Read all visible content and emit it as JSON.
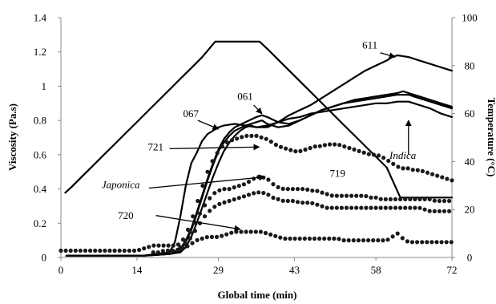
{
  "chart_data": {
    "type": "line",
    "xlabel": "Global time (min)",
    "ylabel": "Viscosity  (Pa.s)",
    "y2label": "Temperature (°C)",
    "xlim": [
      0,
      72
    ],
    "ylim": [
      0,
      1.4
    ],
    "y2lim": [
      0,
      100
    ],
    "xticks": [
      "0",
      "14",
      "29",
      "43",
      "58",
      "72"
    ],
    "xtick_values": [
      0,
      14,
      29,
      43,
      58,
      72
    ],
    "yticks": [
      "0",
      "0.2",
      "0.4",
      "0.6",
      "0.8",
      "1",
      "1.2",
      "1.4"
    ],
    "ytick_values": [
      0,
      0.2,
      0.4,
      0.6,
      0.8,
      1,
      1.2,
      1.4
    ],
    "y2ticks": [
      "0",
      "20",
      "40",
      "60",
      "80",
      "100"
    ],
    "y2tick_values": [
      0,
      20,
      40,
      60,
      80,
      100
    ],
    "grid": false,
    "series": [
      {
        "name": "Temperature",
        "axis": "right",
        "style": "line",
        "lineWidth": 2.2,
        "x": [
          0.8,
          2,
          4,
          6,
          8,
          10,
          12,
          14,
          16,
          18,
          20,
          22,
          24,
          26,
          28.4,
          31,
          34,
          36.6,
          38,
          40,
          42,
          44,
          46,
          48,
          50,
          52,
          54,
          56,
          58,
          60,
          62.5,
          65,
          68,
          72
        ],
        "y": [
          27,
          29.5,
          34,
          38.5,
          43,
          47.5,
          52,
          56.5,
          61,
          65.5,
          70,
          74.5,
          79,
          83.5,
          90,
          90,
          90,
          90,
          87,
          82.5,
          78,
          73.5,
          69,
          64.5,
          60,
          55.5,
          51,
          46.5,
          42,
          37.5,
          25,
          25,
          25,
          25
        ]
      },
      {
        "name": "611",
        "axis": "left",
        "style": "line",
        "lineWidth": 2.2,
        "x": [
          1,
          5,
          10,
          15,
          20,
          22,
          23,
          24,
          25,
          26,
          27,
          28,
          29,
          30,
          31,
          32,
          33,
          34,
          35,
          36,
          37,
          38,
          40,
          42,
          44,
          46,
          48,
          50,
          52,
          54,
          56,
          58,
          60,
          61,
          62,
          63,
          64,
          66,
          68,
          70,
          72
        ],
        "y": [
          0.01,
          0.01,
          0.01,
          0.01,
          0.02,
          0.03,
          0.06,
          0.12,
          0.2,
          0.29,
          0.38,
          0.47,
          0.55,
          0.62,
          0.67,
          0.71,
          0.74,
          0.76,
          0.77,
          0.76,
          0.76,
          0.76,
          0.79,
          0.83,
          0.86,
          0.89,
          0.93,
          0.97,
          1.01,
          1.05,
          1.09,
          1.12,
          1.15,
          1.17,
          1.18,
          1.175,
          1.17,
          1.15,
          1.13,
          1.11,
          1.09
        ]
      },
      {
        "name": "Indica",
        "axis": "left",
        "style": "line",
        "lineWidth": 2.2,
        "x": [
          1,
          5,
          10,
          15,
          20,
          21,
          22,
          23,
          24,
          25,
          26,
          27,
          28,
          29,
          30,
          32,
          34,
          36,
          38,
          40,
          42,
          44,
          46,
          48,
          50,
          52,
          54,
          56,
          58,
          60,
          62,
          64,
          66,
          68,
          70,
          72
        ],
        "y": [
          0.01,
          0.01,
          0.01,
          0.01,
          0.03,
          0.09,
          0.24,
          0.42,
          0.55,
          0.61,
          0.68,
          0.72,
          0.74,
          0.76,
          0.77,
          0.78,
          0.77,
          0.76,
          0.77,
          0.79,
          0.81,
          0.82,
          0.84,
          0.85,
          0.86,
          0.87,
          0.88,
          0.89,
          0.9,
          0.9,
          0.91,
          0.91,
          0.89,
          0.87,
          0.84,
          0.82
        ]
      },
      {
        "name": "061",
        "axis": "left",
        "style": "line",
        "lineWidth": 2.2,
        "x": [
          1,
          5,
          10,
          15,
          20,
          22,
          23,
          24,
          25,
          26,
          27,
          28,
          29,
          30,
          31,
          32,
          34,
          36,
          37,
          38,
          40,
          42,
          44,
          46,
          48,
          50,
          52,
          54,
          56,
          58,
          60,
          62,
          63,
          64,
          66,
          68,
          70,
          72
        ],
        "y": [
          0.01,
          0.01,
          0.01,
          0.01,
          0.02,
          0.05,
          0.1,
          0.17,
          0.26,
          0.36,
          0.46,
          0.55,
          0.63,
          0.69,
          0.73,
          0.76,
          0.79,
          0.82,
          0.83,
          0.82,
          0.79,
          0.78,
          0.8,
          0.83,
          0.86,
          0.88,
          0.9,
          0.92,
          0.93,
          0.94,
          0.95,
          0.96,
          0.97,
          0.96,
          0.94,
          0.92,
          0.9,
          0.88
        ]
      },
      {
        "name": "067",
        "axis": "left",
        "style": "line",
        "lineWidth": 2.2,
        "x": [
          1,
          5,
          10,
          15,
          20,
          22,
          23,
          24,
          25,
          26,
          27,
          28,
          29,
          30,
          31,
          32,
          34,
          36,
          37,
          38,
          40,
          42,
          44,
          46,
          48,
          50,
          52,
          54,
          56,
          58,
          60,
          62,
          64,
          66,
          68,
          70,
          72
        ],
        "y": [
          0.01,
          0.01,
          0.01,
          0.01,
          0.02,
          0.04,
          0.09,
          0.16,
          0.25,
          0.35,
          0.45,
          0.54,
          0.62,
          0.67,
          0.71,
          0.74,
          0.77,
          0.79,
          0.8,
          0.78,
          0.76,
          0.77,
          0.8,
          0.83,
          0.86,
          0.88,
          0.9,
          0.91,
          0.92,
          0.93,
          0.94,
          0.95,
          0.95,
          0.93,
          0.91,
          0.89,
          0.87
        ]
      },
      {
        "name": "721",
        "axis": "left",
        "style": "dots",
        "dotRadius": 2.6,
        "step": 0.9,
        "x": [
          0,
          2,
          4,
          6,
          8,
          10,
          12,
          14,
          15,
          16,
          17,
          18,
          19,
          20,
          21,
          22,
          23,
          24,
          25,
          26,
          27,
          28,
          29,
          30,
          31,
          32,
          33,
          34,
          35,
          36,
          37,
          38,
          39,
          40,
          41,
          42,
          43,
          44,
          45,
          46,
          47,
          48,
          49,
          50,
          51,
          52,
          53,
          54,
          55,
          56,
          57,
          58,
          59,
          60,
          61,
          62,
          63,
          64,
          65,
          66,
          67,
          68,
          69,
          70,
          71,
          72
        ],
        "y": [
          0.04,
          0.04,
          0.04,
          0.04,
          0.04,
          0.04,
          0.04,
          0.04,
          0.05,
          0.06,
          0.07,
          0.07,
          0.07,
          0.07,
          0.07,
          0.08,
          0.13,
          0.21,
          0.31,
          0.41,
          0.5,
          0.57,
          0.62,
          0.66,
          0.68,
          0.69,
          0.7,
          0.71,
          0.71,
          0.71,
          0.7,
          0.69,
          0.67,
          0.65,
          0.64,
          0.63,
          0.62,
          0.62,
          0.63,
          0.64,
          0.65,
          0.65,
          0.66,
          0.66,
          0.66,
          0.65,
          0.64,
          0.63,
          0.62,
          0.61,
          0.6,
          0.6,
          0.59,
          0.57,
          0.55,
          0.53,
          0.52,
          0.52,
          0.51,
          0.51,
          0.5,
          0.49,
          0.48,
          0.47,
          0.46,
          0.45
        ]
      },
      {
        "name": "Japonica",
        "axis": "left",
        "style": "dots",
        "dotRadius": 2.6,
        "step": 0.9,
        "x": [
          22,
          23,
          24,
          25,
          26,
          27,
          28,
          29,
          30,
          31,
          32,
          33,
          34,
          35,
          36,
          37,
          38,
          39,
          40,
          41,
          42,
          43,
          44,
          45,
          46,
          47,
          48,
          49,
          50,
          51,
          52,
          53,
          54,
          55,
          56,
          57,
          58,
          59,
          60,
          61,
          62,
          63,
          64,
          65,
          66,
          67,
          68,
          69,
          70,
          71,
          72
        ],
        "y": [
          0.06,
          0.1,
          0.16,
          0.22,
          0.28,
          0.33,
          0.37,
          0.39,
          0.4,
          0.4,
          0.41,
          0.42,
          0.43,
          0.45,
          0.47,
          0.47,
          0.46,
          0.43,
          0.41,
          0.4,
          0.4,
          0.4,
          0.4,
          0.4,
          0.39,
          0.39,
          0.38,
          0.37,
          0.36,
          0.36,
          0.36,
          0.36,
          0.36,
          0.36,
          0.36,
          0.35,
          0.35,
          0.34,
          0.34,
          0.34,
          0.34,
          0.34,
          0.34,
          0.34,
          0.34,
          0.34,
          0.34,
          0.33,
          0.33,
          0.33,
          0.33
        ]
      },
      {
        "name": "719",
        "axis": "left",
        "style": "dots",
        "dotRadius": 2.6,
        "step": 0.9,
        "x": [
          22,
          23,
          24,
          25,
          26,
          27,
          28,
          29,
          30,
          31,
          32,
          33,
          34,
          35,
          36,
          37,
          38,
          39,
          40,
          41,
          42,
          43,
          44,
          45,
          46,
          47,
          48,
          49,
          50,
          51,
          52,
          53,
          54,
          55,
          56,
          57,
          58,
          59,
          60,
          61,
          62,
          63,
          64,
          65,
          66,
          67,
          68,
          69,
          70,
          71,
          72
        ],
        "y": [
          0.05,
          0.08,
          0.12,
          0.17,
          0.22,
          0.26,
          0.29,
          0.31,
          0.32,
          0.33,
          0.34,
          0.35,
          0.36,
          0.37,
          0.38,
          0.38,
          0.37,
          0.35,
          0.34,
          0.33,
          0.33,
          0.33,
          0.32,
          0.32,
          0.32,
          0.31,
          0.3,
          0.29,
          0.29,
          0.29,
          0.29,
          0.29,
          0.29,
          0.29,
          0.29,
          0.29,
          0.29,
          0.29,
          0.29,
          0.29,
          0.29,
          0.29,
          0.29,
          0.29,
          0.29,
          0.28,
          0.27,
          0.27,
          0.27,
          0.27,
          0.27
        ]
      },
      {
        "name": "720",
        "axis": "left",
        "style": "dots",
        "dotRadius": 2.6,
        "step": 0.9,
        "x": [
          17,
          18,
          19,
          20,
          21,
          22,
          23,
          24,
          25,
          26,
          27,
          28,
          29,
          30,
          31,
          32,
          33,
          34,
          35,
          36,
          37,
          38,
          39,
          40,
          41,
          42,
          43,
          44,
          45,
          46,
          47,
          48,
          49,
          50,
          51,
          52,
          53,
          54,
          55,
          56,
          57,
          58,
          59,
          60,
          61,
          62,
          63,
          64,
          65,
          66,
          67,
          68,
          69,
          70,
          71,
          72
        ],
        "y": [
          0.03,
          0.03,
          0.04,
          0.04,
          0.04,
          0.05,
          0.06,
          0.08,
          0.1,
          0.11,
          0.12,
          0.12,
          0.12,
          0.13,
          0.14,
          0.15,
          0.15,
          0.15,
          0.15,
          0.15,
          0.15,
          0.14,
          0.13,
          0.12,
          0.11,
          0.11,
          0.11,
          0.11,
          0.11,
          0.11,
          0.11,
          0.11,
          0.11,
          0.11,
          0.11,
          0.1,
          0.1,
          0.1,
          0.1,
          0.1,
          0.1,
          0.1,
          0.1,
          0.1,
          0.12,
          0.14,
          0.11,
          0.09,
          0.09,
          0.09,
          0.09,
          0.09,
          0.09,
          0.09,
          0.09,
          0.09
        ]
      }
    ],
    "annotations": [
      {
        "text": "611",
        "italic": false,
        "label_at": [
          55.5,
          1.22
        ],
        "arrow_from": [
          58.8,
          1.195
        ],
        "arrow_to": [
          61.5,
          1.17
        ]
      },
      {
        "text": "061",
        "italic": false,
        "label_at": [
          32.5,
          0.92
        ],
        "arrow_from": [
          35.5,
          0.89
        ],
        "arrow_to": [
          37.0,
          0.84
        ]
      },
      {
        "text": "067",
        "italic": false,
        "label_at": [
          22.5,
          0.82
        ],
        "arrow_from": [
          25.2,
          0.8
        ],
        "arrow_to": [
          29.0,
          0.75
        ]
      },
      {
        "text": "721",
        "italic": false,
        "label_at": [
          16,
          0.625
        ],
        "arrow_from": [
          20.0,
          0.635
        ],
        "arrow_to": [
          36.5,
          0.645
        ]
      },
      {
        "text": "Japonica",
        "italic": true,
        "label_at": [
          7.5,
          0.405
        ],
        "arrow_from": [
          16.2,
          0.405
        ],
        "arrow_to": [
          37.5,
          0.47
        ]
      },
      {
        "text": "719",
        "italic": false,
        "label_at": [
          49.5,
          0.47
        ],
        "arrow_from": null,
        "arrow_to": null
      },
      {
        "text": "720",
        "italic": false,
        "label_at": [
          10.5,
          0.225
        ],
        "arrow_from": [
          17.5,
          0.245
        ],
        "arrow_to": [
          33.0,
          0.165
        ]
      },
      {
        "text": "Indica",
        "italic": true,
        "label_at": [
          60.5,
          0.575
        ],
        "arrow_from": [
          64.0,
          0.6
        ],
        "arrow_to": [
          64.0,
          0.8
        ]
      }
    ],
    "colors": {
      "line": "#000000",
      "dots": "#1a1a1a",
      "background": "#ffffff"
    }
  }
}
